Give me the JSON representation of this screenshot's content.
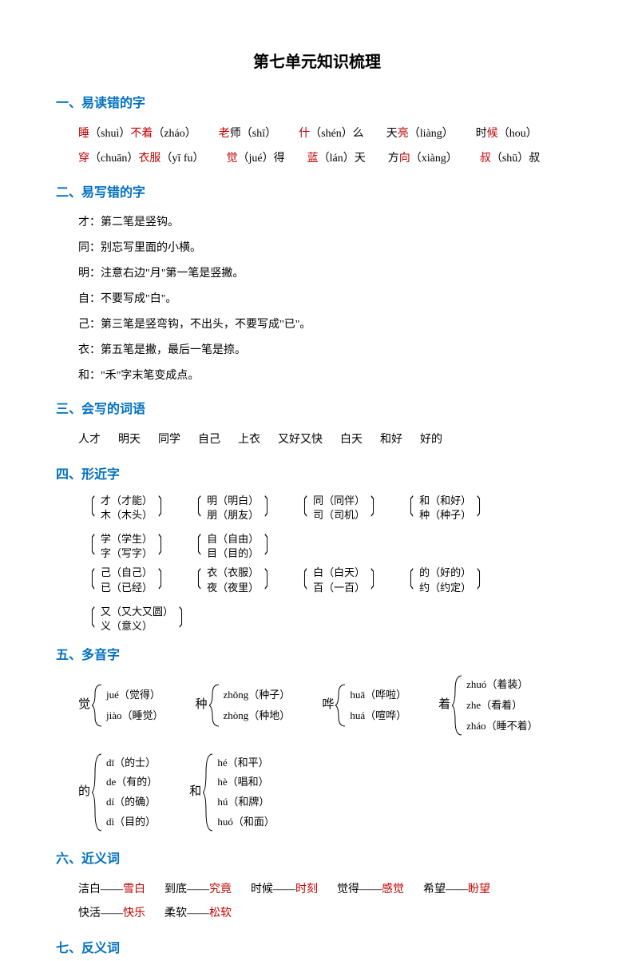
{
  "title": "第七单元知识梳理",
  "colors": {
    "heading": "#0070c0",
    "highlight": "#c00000",
    "text": "#000000",
    "background": "#ffffff"
  },
  "section1": {
    "heading": "一、易读错的字",
    "row1": [
      {
        "red": "睡",
        "py": "（shuì）",
        "red2": "不着",
        "py2": "（zháo）"
      },
      {
        "red": "老",
        "black": "师",
        "py": "（shī）"
      },
      {
        "red": "什",
        "py": "（shén）",
        "black2": "么"
      },
      {
        "black": "天",
        "red": "亮",
        "py": "（liàng）"
      },
      {
        "black": "时",
        "red": "候",
        "py": "（hou）"
      }
    ],
    "row2": [
      {
        "red": "穿",
        "py": "（chuān）",
        "red2": "衣服",
        "py2": "（yī fu）"
      },
      {
        "red": "觉",
        "py": "（jué）",
        "black2": "得"
      },
      {
        "red": "蓝",
        "py": "（lán）",
        "black2": "天"
      },
      {
        "black": "方",
        "red": "向",
        "py": "（xiàng）"
      },
      {
        "red": "叔",
        "py": "（shū）",
        "black2": "叔"
      }
    ]
  },
  "section2": {
    "heading": "二、易写错的字",
    "items": [
      "才：第二笔是竖钩。",
      "同：别忘写里面的小横。",
      "明：注意右边\"月\"第一笔是竖撇。",
      "自：不要写成\"白\"。",
      "己：第三笔是竖弯钩，不出头，不要写成\"已\"。",
      "衣：第五笔是撇，最后一笔是捺。",
      "和：\"禾\"字末笔变成点。"
    ]
  },
  "section3": {
    "heading": "三、会写的词语",
    "words": [
      "人才",
      "明天",
      "同学",
      "自己",
      "上衣",
      "又好又快",
      "白天",
      "和好",
      "好的"
    ]
  },
  "section4": {
    "heading": "四、形近字",
    "row1": [
      {
        "a": "才（才能）",
        "b": "木（木头）"
      },
      {
        "a": "明（明白）",
        "b": "朋（朋友）"
      },
      {
        "a": "同（同伴）",
        "b": "司（司机）"
      },
      {
        "a": "和（和好）",
        "b": "种（种子）"
      },
      {
        "a": "学（学生）",
        "b": "字（写字）"
      },
      {
        "a": "自（自由）",
        "b": "目（目的）"
      }
    ],
    "row2": [
      {
        "a": "己（自己）",
        "b": "已（已经）"
      },
      {
        "a": "衣（衣服）",
        "b": "夜（夜里）"
      },
      {
        "a": "白（白天）",
        "b": "百（一百）"
      },
      {
        "a": "的（好的）",
        "b": "约（约定）"
      },
      {
        "a": "又（又大又圆）",
        "b": "义（意义）"
      }
    ]
  },
  "section5": {
    "heading": "五、多音字",
    "group1": [
      {
        "char": "觉",
        "readings": [
          "jué（觉得）",
          "jiào（睡觉）"
        ]
      },
      {
        "char": "种",
        "readings": [
          "zhǒng（种子）",
          "zhòng（种地）"
        ]
      },
      {
        "char": "哗",
        "readings": [
          "huā（哗啦）",
          "huá（喧哗）"
        ]
      },
      {
        "char": "着",
        "readings": [
          "zhuó（着装）",
          "zhe（看着）",
          "zháo（睡不着）"
        ]
      }
    ],
    "group2": [
      {
        "char": "的",
        "readings": [
          "dī（的士）",
          "de（有的）",
          "dí（的确）",
          "dì（目的）"
        ]
      },
      {
        "char": "和",
        "readings": [
          "hé（和平）",
          "hè（唱和）",
          "hú（和牌）",
          "huó（和面）"
        ]
      }
    ]
  },
  "section6": {
    "heading": "六、近义词",
    "row1": [
      {
        "a": "洁白",
        "b": "雪白"
      },
      {
        "a": "到底",
        "b": "究竟"
      },
      {
        "a": "时候",
        "b": "时刻"
      },
      {
        "a": "觉得",
        "b": "感觉"
      },
      {
        "a": "希望",
        "b": "盼望"
      }
    ],
    "row2": [
      {
        "a": "快活",
        "b": "快乐"
      },
      {
        "a": "柔软",
        "b": "松软"
      }
    ]
  },
  "section7": {
    "heading": "七、反义词"
  }
}
